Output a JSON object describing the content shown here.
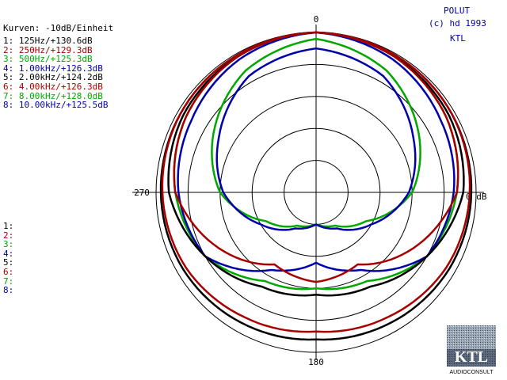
{
  "header": {
    "scale_label": "Kurven: -10dB/Einheit",
    "app_name": "POLUT",
    "copyright": "(c) hd 1993",
    "org": "KTL"
  },
  "colors": {
    "label_blue": "#0000a8",
    "black": "#000000",
    "red": "#a80000",
    "green": "#00a800",
    "blue": "#0000a8",
    "grid": "#000000"
  },
  "logo": {
    "text": "KTL",
    "subtext": "AUDIOCONSULT"
  },
  "chart_data": {
    "type": "polar",
    "angle_labels": {
      "top": "0",
      "left": "270",
      "bottom": "180",
      "right": "0 dB"
    },
    "rings_db": [
      0,
      -10,
      -20,
      -30,
      -40
    ],
    "db_per_unit": -10,
    "series": [
      {
        "index": "1:",
        "label": "125Hz/+130.6dB",
        "color": "#000000",
        "angles": [
          0,
          30,
          60,
          90,
          120,
          150,
          180
        ],
        "db": [
          0,
          -0.5,
          -1,
          -1.5,
          -2,
          -3,
          -4
        ]
      },
      {
        "index": "2:",
        "label": "250Hz/+129.3dB",
        "color": "#a80000",
        "angles": [
          0,
          30,
          60,
          90,
          120,
          150,
          180
        ],
        "db": [
          0,
          -0.5,
          -1,
          -2,
          -3,
          -5,
          -6.5
        ]
      },
      {
        "index": "3:",
        "label": "500Hz/+125.3dB",
        "color": "#00a800",
        "angles": [
          0,
          30,
          60,
          90,
          120,
          150,
          180
        ],
        "db": [
          0,
          -1,
          -3,
          -6,
          -10,
          -18,
          -20
        ]
      },
      {
        "index": "4:",
        "label": "1.00kHz/+126.3dB",
        "color": "#0000a8",
        "angles": [
          0,
          30,
          60,
          90,
          120,
          150,
          180
        ],
        "db": [
          0,
          -2,
          -5,
          -7,
          -10,
          -22,
          -28
        ]
      },
      {
        "index": "5:",
        "label": "2.00kHz/+124.2dB",
        "color": "#000000",
        "angles": [
          0,
          30,
          60,
          90,
          120,
          150,
          180
        ],
        "db": [
          0,
          -1,
          -2,
          -4,
          -10,
          -16,
          -18
        ]
      },
      {
        "index": "6:",
        "label": "4.00kHz/+126.3dB",
        "color": "#a80000",
        "angles": [
          0,
          30,
          60,
          90,
          120,
          150,
          180
        ],
        "db": [
          0,
          -1,
          -3,
          -6,
          -15,
          -24,
          -22
        ]
      },
      {
        "index": "7:",
        "label": "8.00kHz/+128.0dB",
        "color": "#00a800",
        "angles": [
          0,
          30,
          60,
          90,
          120,
          150,
          180
        ],
        "db": [
          -2,
          -6,
          -13,
          -20,
          -32,
          -38,
          -40
        ]
      },
      {
        "index": "8:",
        "label": "10.00kHz/+125.5dB",
        "color": "#0000a8",
        "angles": [
          0,
          30,
          60,
          90,
          120,
          150,
          180
        ],
        "db": [
          -5,
          -8,
          -15,
          -21,
          -30,
          -37,
          -40
        ]
      }
    ],
    "lower_index_labels": [
      "1:",
      "2:",
      "3:",
      "4:",
      "5:",
      "6:",
      "7:",
      "8:"
    ]
  }
}
